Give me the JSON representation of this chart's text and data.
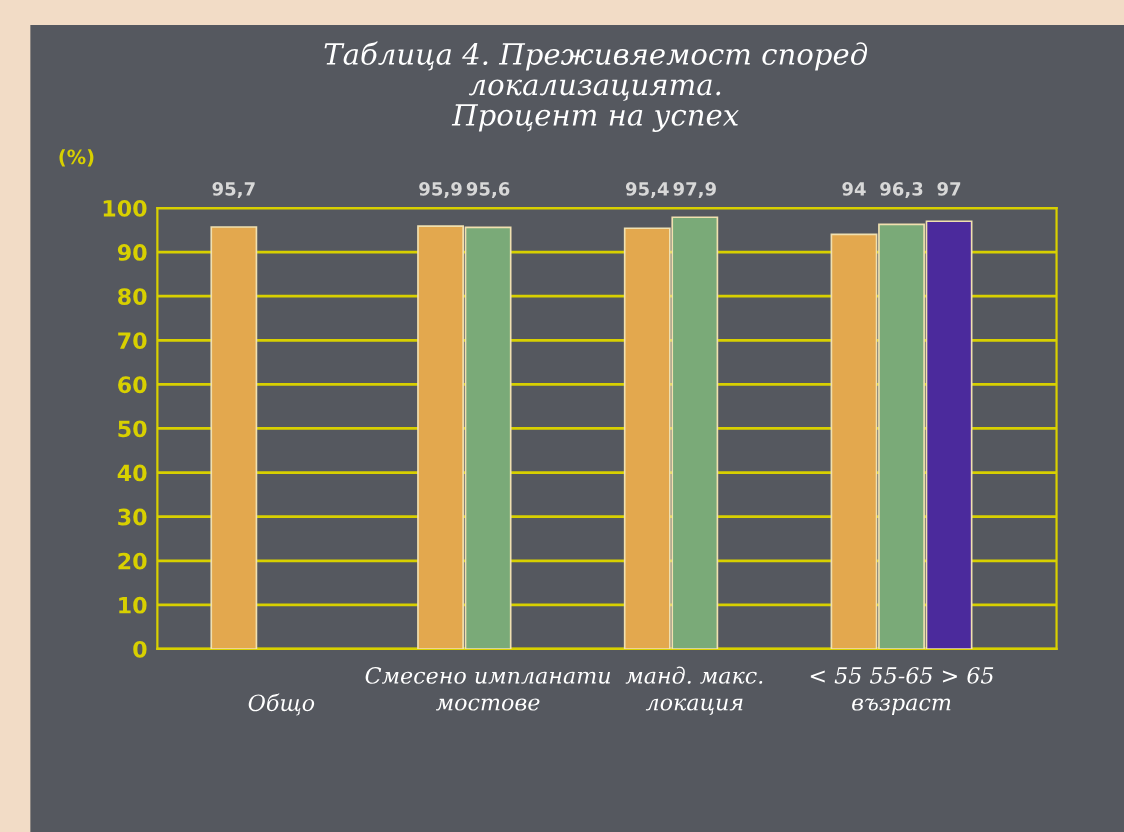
{
  "chart_data": {
    "type": "bar",
    "title": "Таблица 4. Преживяемост според\nлокализацията.\nПроцент на успех",
    "ylabel": "(%)",
    "categories": [
      "Общо",
      "мостове",
      "локация",
      "възраст"
    ],
    "annotations": [
      "Смесено импланати",
      "манд. макс.",
      "< 55 55-65 > 65"
    ],
    "series": [
      {
        "color": "#e3a84e",
        "values": [
          95.7,
          95.9,
          95.4,
          94
        ],
        "value_labels": [
          "95,7",
          "95,9",
          "95,4",
          "94"
        ]
      },
      {
        "color": "#7aaa78",
        "values": [
          null,
          95.6,
          97.9,
          96.3
        ],
        "value_labels": [
          null,
          "95,6",
          "97,9",
          "96,3"
        ]
      },
      {
        "color": "#4b2a9c",
        "values": [
          null,
          null,
          null,
          97
        ],
        "value_labels": [
          null,
          null,
          null,
          "97"
        ]
      }
    ],
    "ylim": [
      0,
      100
    ],
    "yticks": [
      0,
      10,
      20,
      30,
      40,
      50,
      60,
      70,
      80,
      90,
      100
    ],
    "grid": "y",
    "legend": false
  }
}
